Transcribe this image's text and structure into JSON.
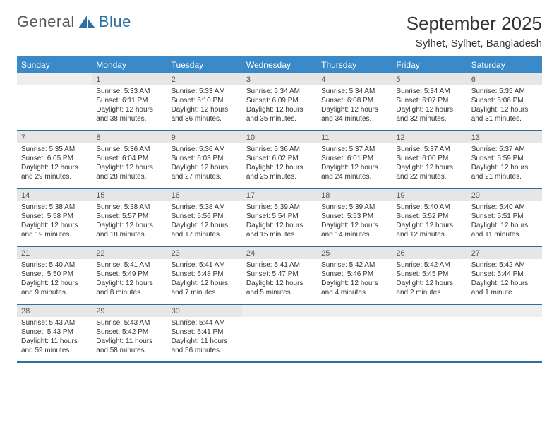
{
  "logo": {
    "word1": "General",
    "word2": "Blue",
    "word1_color": "#6a6a6a",
    "word2_color": "#2b6fa3",
    "tri_color": "#2b6fa3"
  },
  "header": {
    "month_title": "September 2025",
    "location": "Sylhet, Sylhet, Bangladesh"
  },
  "colors": {
    "header_bg": "#3a8ac9",
    "header_text": "#ffffff",
    "daynum_bg": "#e6e6e6",
    "row_divider": "#2b6fa3",
    "text": "#333333"
  },
  "day_headers": [
    "Sunday",
    "Monday",
    "Tuesday",
    "Wednesday",
    "Thursday",
    "Friday",
    "Saturday"
  ],
  "weeks": [
    [
      null,
      {
        "n": "1",
        "sr": "Sunrise: 5:33 AM",
        "ss": "Sunset: 6:11 PM",
        "d1": "Daylight: 12 hours",
        "d2": "and 38 minutes."
      },
      {
        "n": "2",
        "sr": "Sunrise: 5:33 AM",
        "ss": "Sunset: 6:10 PM",
        "d1": "Daylight: 12 hours",
        "d2": "and 36 minutes."
      },
      {
        "n": "3",
        "sr": "Sunrise: 5:34 AM",
        "ss": "Sunset: 6:09 PM",
        "d1": "Daylight: 12 hours",
        "d2": "and 35 minutes."
      },
      {
        "n": "4",
        "sr": "Sunrise: 5:34 AM",
        "ss": "Sunset: 6:08 PM",
        "d1": "Daylight: 12 hours",
        "d2": "and 34 minutes."
      },
      {
        "n": "5",
        "sr": "Sunrise: 5:34 AM",
        "ss": "Sunset: 6:07 PM",
        "d1": "Daylight: 12 hours",
        "d2": "and 32 minutes."
      },
      {
        "n": "6",
        "sr": "Sunrise: 5:35 AM",
        "ss": "Sunset: 6:06 PM",
        "d1": "Daylight: 12 hours",
        "d2": "and 31 minutes."
      }
    ],
    [
      {
        "n": "7",
        "sr": "Sunrise: 5:35 AM",
        "ss": "Sunset: 6:05 PM",
        "d1": "Daylight: 12 hours",
        "d2": "and 29 minutes."
      },
      {
        "n": "8",
        "sr": "Sunrise: 5:36 AM",
        "ss": "Sunset: 6:04 PM",
        "d1": "Daylight: 12 hours",
        "d2": "and 28 minutes."
      },
      {
        "n": "9",
        "sr": "Sunrise: 5:36 AM",
        "ss": "Sunset: 6:03 PM",
        "d1": "Daylight: 12 hours",
        "d2": "and 27 minutes."
      },
      {
        "n": "10",
        "sr": "Sunrise: 5:36 AM",
        "ss": "Sunset: 6:02 PM",
        "d1": "Daylight: 12 hours",
        "d2": "and 25 minutes."
      },
      {
        "n": "11",
        "sr": "Sunrise: 5:37 AM",
        "ss": "Sunset: 6:01 PM",
        "d1": "Daylight: 12 hours",
        "d2": "and 24 minutes."
      },
      {
        "n": "12",
        "sr": "Sunrise: 5:37 AM",
        "ss": "Sunset: 6:00 PM",
        "d1": "Daylight: 12 hours",
        "d2": "and 22 minutes."
      },
      {
        "n": "13",
        "sr": "Sunrise: 5:37 AM",
        "ss": "Sunset: 5:59 PM",
        "d1": "Daylight: 12 hours",
        "d2": "and 21 minutes."
      }
    ],
    [
      {
        "n": "14",
        "sr": "Sunrise: 5:38 AM",
        "ss": "Sunset: 5:58 PM",
        "d1": "Daylight: 12 hours",
        "d2": "and 19 minutes."
      },
      {
        "n": "15",
        "sr": "Sunrise: 5:38 AM",
        "ss": "Sunset: 5:57 PM",
        "d1": "Daylight: 12 hours",
        "d2": "and 18 minutes."
      },
      {
        "n": "16",
        "sr": "Sunrise: 5:38 AM",
        "ss": "Sunset: 5:56 PM",
        "d1": "Daylight: 12 hours",
        "d2": "and 17 minutes."
      },
      {
        "n": "17",
        "sr": "Sunrise: 5:39 AM",
        "ss": "Sunset: 5:54 PM",
        "d1": "Daylight: 12 hours",
        "d2": "and 15 minutes."
      },
      {
        "n": "18",
        "sr": "Sunrise: 5:39 AM",
        "ss": "Sunset: 5:53 PM",
        "d1": "Daylight: 12 hours",
        "d2": "and 14 minutes."
      },
      {
        "n": "19",
        "sr": "Sunrise: 5:40 AM",
        "ss": "Sunset: 5:52 PM",
        "d1": "Daylight: 12 hours",
        "d2": "and 12 minutes."
      },
      {
        "n": "20",
        "sr": "Sunrise: 5:40 AM",
        "ss": "Sunset: 5:51 PM",
        "d1": "Daylight: 12 hours",
        "d2": "and 11 minutes."
      }
    ],
    [
      {
        "n": "21",
        "sr": "Sunrise: 5:40 AM",
        "ss": "Sunset: 5:50 PM",
        "d1": "Daylight: 12 hours",
        "d2": "and 9 minutes."
      },
      {
        "n": "22",
        "sr": "Sunrise: 5:41 AM",
        "ss": "Sunset: 5:49 PM",
        "d1": "Daylight: 12 hours",
        "d2": "and 8 minutes."
      },
      {
        "n": "23",
        "sr": "Sunrise: 5:41 AM",
        "ss": "Sunset: 5:48 PM",
        "d1": "Daylight: 12 hours",
        "d2": "and 7 minutes."
      },
      {
        "n": "24",
        "sr": "Sunrise: 5:41 AM",
        "ss": "Sunset: 5:47 PM",
        "d1": "Daylight: 12 hours",
        "d2": "and 5 minutes."
      },
      {
        "n": "25",
        "sr": "Sunrise: 5:42 AM",
        "ss": "Sunset: 5:46 PM",
        "d1": "Daylight: 12 hours",
        "d2": "and 4 minutes."
      },
      {
        "n": "26",
        "sr": "Sunrise: 5:42 AM",
        "ss": "Sunset: 5:45 PM",
        "d1": "Daylight: 12 hours",
        "d2": "and 2 minutes."
      },
      {
        "n": "27",
        "sr": "Sunrise: 5:42 AM",
        "ss": "Sunset: 5:44 PM",
        "d1": "Daylight: 12 hours",
        "d2": "and 1 minute."
      }
    ],
    [
      {
        "n": "28",
        "sr": "Sunrise: 5:43 AM",
        "ss": "Sunset: 5:43 PM",
        "d1": "Daylight: 11 hours",
        "d2": "and 59 minutes."
      },
      {
        "n": "29",
        "sr": "Sunrise: 5:43 AM",
        "ss": "Sunset: 5:42 PM",
        "d1": "Daylight: 11 hours",
        "d2": "and 58 minutes."
      },
      {
        "n": "30",
        "sr": "Sunrise: 5:44 AM",
        "ss": "Sunset: 5:41 PM",
        "d1": "Daylight: 11 hours",
        "d2": "and 56 minutes."
      },
      null,
      null,
      null,
      null
    ]
  ]
}
